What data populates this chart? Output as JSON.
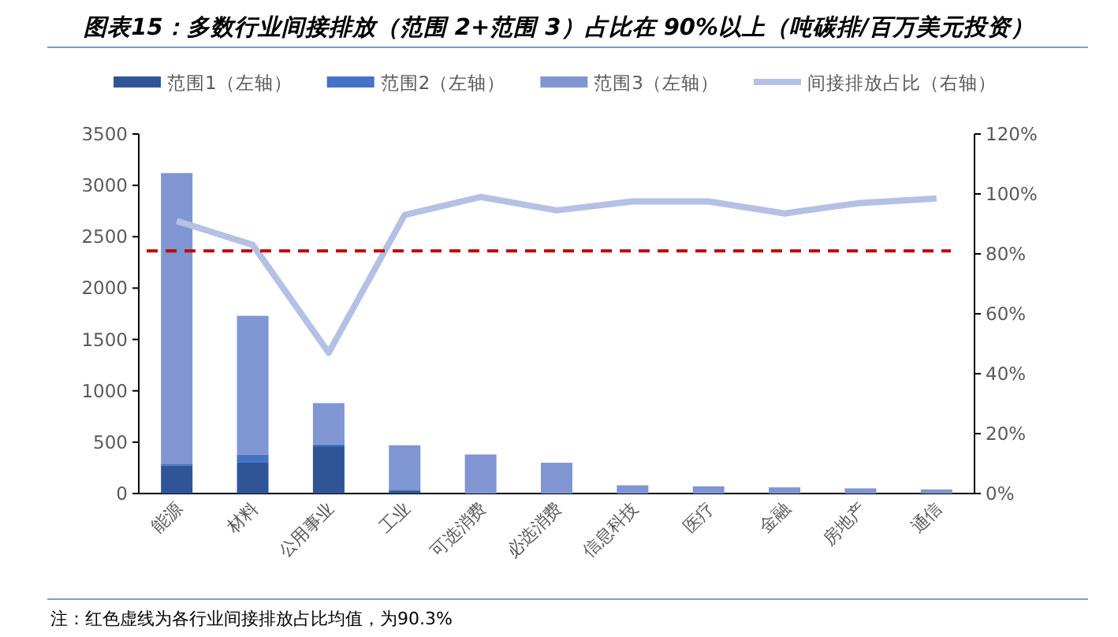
{
  "chart_data": {
    "type": "bar",
    "stacked": true,
    "title": "图表15：多数行业间接排放（范围 2+范围 3）占比在 90%以上（吨碳排/百万美元投资）",
    "categories": [
      "能源",
      "材料",
      "公用事业",
      "工业",
      "可选消费",
      "必选消费",
      "信息科技",
      "医疗",
      "金融",
      "房地产",
      "通信"
    ],
    "series": [
      {
        "name": "范围1（左轴）",
        "color": "#2f5597",
        "values": [
          270,
          300,
          460,
          30,
          null,
          null,
          null,
          null,
          null,
          null,
          null
        ]
      },
      {
        "name": "范围2（左轴）",
        "color": "#4472c4",
        "values": [
          20,
          80,
          20,
          null,
          null,
          null,
          null,
          null,
          null,
          null,
          null
        ]
      },
      {
        "name": "范围3（左轴）",
        "color": "#7f96d2",
        "values": [
          2830,
          1350,
          400,
          440,
          380,
          300,
          80,
          70,
          60,
          50,
          40
        ]
      },
      {
        "name": "间接排放占比（右轴）",
        "type": "line",
        "axis": "y2",
        "color": "#b4c1e4",
        "values": [
          91,
          83,
          47,
          93,
          99,
          94.5,
          97.5,
          97.5,
          93.5,
          97,
          98.5
        ]
      }
    ],
    "ylim": [
      0,
      3500
    ],
    "yticks": [
      0,
      500,
      1000,
      1500,
      2000,
      2500,
      3000,
      3500
    ],
    "y2lim": [
      0,
      120
    ],
    "y2ticks": [
      {
        "value": 0,
        "label": "0%"
      },
      {
        "value": 20,
        "label": "20%"
      },
      {
        "value": 40,
        "label": "40%"
      },
      {
        "value": 60,
        "label": "60%"
      },
      {
        "value": 80,
        "label": "80%"
      },
      {
        "value": 100,
        "label": "100%"
      },
      {
        "value": 120,
        "label": "120%"
      }
    ],
    "ref_lines": [
      {
        "axis": "y2",
        "value": 81,
        "color": "#c00000",
        "line_style": "dashed"
      }
    ],
    "legend": "top",
    "annotations": [
      "注：红色虚线为各行业间接排放占比均值，为90.3%"
    ]
  }
}
